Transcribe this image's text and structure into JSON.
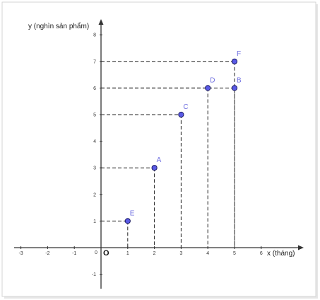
{
  "chart_data": {
    "type": "scatter",
    "xlabel": "x (tháng)",
    "ylabel": "y (nghìn sản phẩm)",
    "origin_label": "O",
    "xlim": [
      -3.5,
      7
    ],
    "ylim": [
      -1.5,
      8.5
    ],
    "x_ticks": [
      -3,
      -2,
      -1,
      0,
      1,
      2,
      3,
      4,
      5,
      6
    ],
    "y_ticks": [
      -1,
      1,
      2,
      3,
      4,
      5,
      6,
      7,
      8
    ],
    "grid": false,
    "guide_lines": "dashed",
    "points": [
      {
        "label": "E",
        "x": 1,
        "y": 1
      },
      {
        "label": "A",
        "x": 2,
        "y": 3
      },
      {
        "label": "C",
        "x": 3,
        "y": 5
      },
      {
        "label": "D",
        "x": 4,
        "y": 6
      },
      {
        "label": "B",
        "x": 5,
        "y": 6
      },
      {
        "label": "F",
        "x": 5,
        "y": 7
      }
    ],
    "colors": {
      "point_fill": "#5a5ae6",
      "point_stroke": "#1a1a66",
      "point_label": "#7070e0",
      "axis": "#333333",
      "guide": "#222222"
    }
  }
}
